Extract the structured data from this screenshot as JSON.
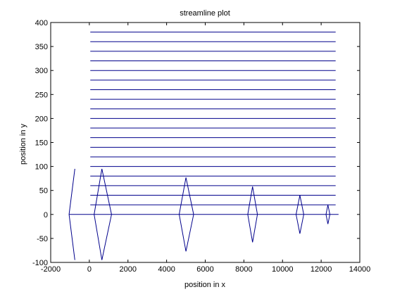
{
  "chart_data": {
    "type": "line",
    "title": "streamline plot",
    "xlabel": "position in x",
    "ylabel": "position in y",
    "xlim": [
      -2000,
      14000
    ],
    "ylim": [
      -100,
      400
    ],
    "xticks": [
      -2000,
      0,
      2000,
      4000,
      6000,
      8000,
      10000,
      12000,
      14000
    ],
    "yticks": [
      -100,
      -50,
      0,
      50,
      100,
      150,
      200,
      250,
      300,
      350,
      400
    ],
    "xtick_labels": [
      "-2000",
      "0",
      "2000",
      "4000",
      "6000",
      "8000",
      "10000",
      "12000",
      "14000"
    ],
    "ytick_labels": [
      "-100",
      "-50",
      "0",
      "50",
      "100",
      "150",
      "200",
      "250",
      "300",
      "350",
      "400"
    ],
    "grid": false,
    "line_color": "#00008B",
    "streamlines": {
      "x_start": 50,
      "x_end": 12750,
      "y_values": [
        20,
        40,
        60,
        80,
        100,
        120,
        140,
        160,
        180,
        200,
        220,
        240,
        260,
        280,
        300,
        320,
        340,
        360,
        380
      ]
    },
    "baseline": {
      "x": [
        -1050,
        12900
      ],
      "y": [
        0,
        0
      ]
    },
    "shapes": [
      {
        "x": [
          -750,
          -1050,
          -750
        ],
        "y": [
          95,
          0,
          -95
        ]
      },
      {
        "x": [
          650,
          250,
          650,
          1150,
          650
        ],
        "y": [
          95,
          0,
          -95,
          0,
          95
        ]
      },
      {
        "x": [
          5000,
          4650,
          5000,
          5400,
          5000
        ],
        "y": [
          77,
          0,
          -77,
          0,
          77
        ]
      },
      {
        "x": [
          8450,
          8200,
          8450,
          8700,
          8450
        ],
        "y": [
          58,
          0,
          -58,
          0,
          58
        ]
      },
      {
        "x": [
          10900,
          10700,
          10900,
          11100,
          10900
        ],
        "y": [
          40,
          0,
          -40,
          0,
          40
        ]
      },
      {
        "x": [
          12350,
          12250,
          12350,
          12450,
          12350
        ],
        "y": [
          20,
          0,
          -20,
          0,
          20
        ]
      }
    ]
  }
}
